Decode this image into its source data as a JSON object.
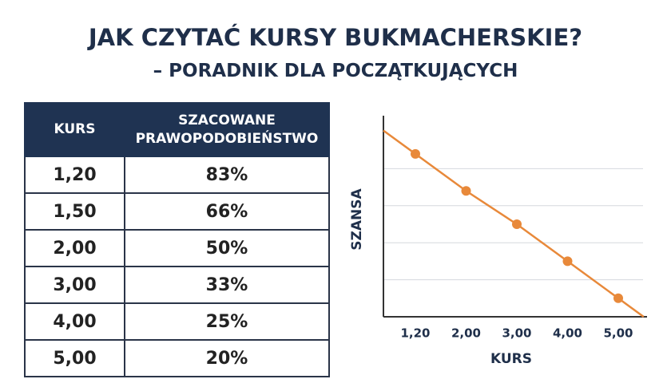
{
  "header": {
    "title": "JAK CZYTAĆ KURSY BUKMACHERSKIE?",
    "subtitle": "– PORADNIK DLA POCZĄTKUJĄCYCH"
  },
  "table": {
    "columns": [
      "KURS",
      "SZACOWANE PRAWOPODOBIEŃSTWO"
    ],
    "rows": [
      [
        "1,20",
        "83%"
      ],
      [
        "1,50",
        "66%"
      ],
      [
        "2,00",
        "50%"
      ],
      [
        "3,00",
        "33%"
      ],
      [
        "4,00",
        "25%"
      ],
      [
        "5,00",
        "20%"
      ]
    ]
  },
  "chart_data": {
    "type": "line",
    "x_label": "KURS",
    "y_label": "SZANSA",
    "categories": [
      "1,20",
      "2,00",
      "3,00",
      "4,00",
      "5,00"
    ],
    "series": [
      {
        "color": "#e8893a",
        "values": [
          4.4,
          3.4,
          2.5,
          1.5,
          0.5
        ]
      }
    ],
    "ylim": [
      0,
      5
    ],
    "yticks": [
      1,
      2,
      3,
      4
    ],
    "grid": true
  }
}
